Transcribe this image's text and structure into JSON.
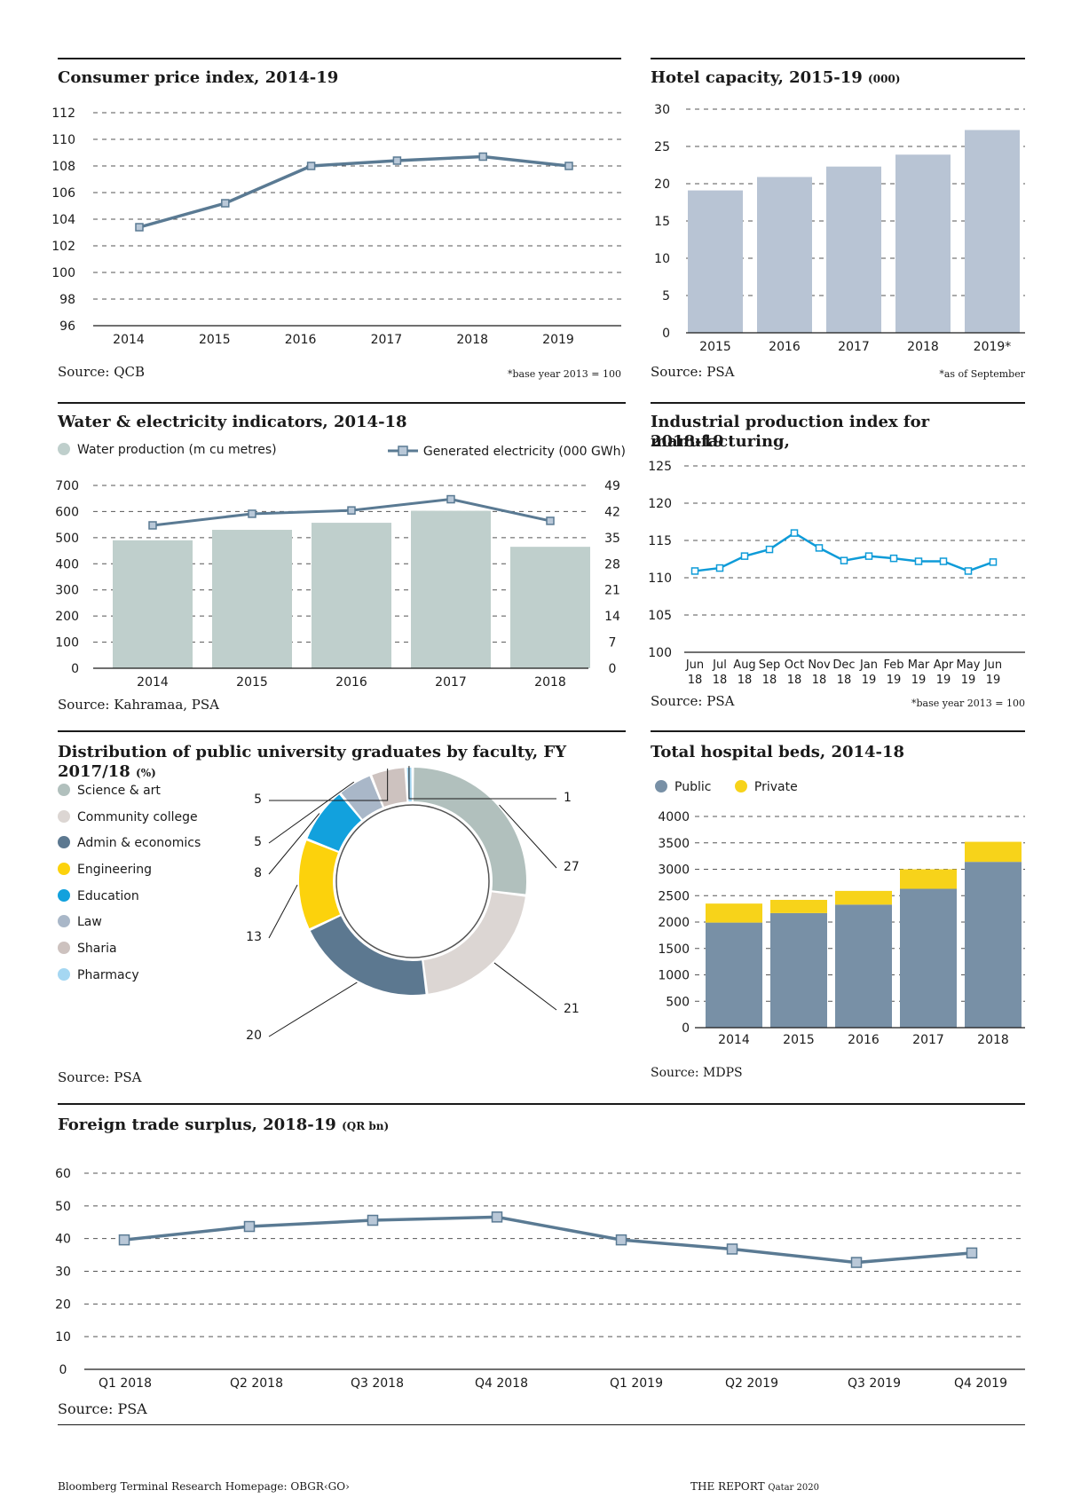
{
  "colors": {
    "line": "#5a7a93",
    "marker_fill": "#b9c8d8",
    "hotel_bar": "#b8c4d4",
    "water_bar": "#bfcfcc",
    "ipi_line": "#0e9bd8",
    "public": "#7890a6",
    "private": "#f7d31a",
    "grid": "#555555"
  },
  "cpi": {
    "title": "Consumer price index, 2014-19",
    "source": "Source: QCB",
    "note": "*base year 2013 = 100",
    "chart_data": {
      "type": "line",
      "x": [
        "2014",
        "2015",
        "2016",
        "2017",
        "2018",
        "2019"
      ],
      "values": [
        103.4,
        105.2,
        108.0,
        108.4,
        108.7,
        108.0
      ],
      "ylim": [
        96,
        112
      ],
      "yticks": [
        96,
        98,
        100,
        102,
        104,
        106,
        108,
        110,
        112
      ]
    }
  },
  "hotel": {
    "title": "Hotel capacity, 2015-19",
    "unit": "(000)",
    "source": "Source: PSA",
    "note": "*as of September",
    "chart_data": {
      "type": "bar",
      "categories": [
        "2015",
        "2016",
        "2017",
        "2018",
        "2019*"
      ],
      "values": [
        19.1,
        20.9,
        22.3,
        23.9,
        27.2
      ],
      "ylim": [
        0,
        30
      ],
      "yticks": [
        0,
        5,
        10,
        15,
        20,
        25,
        30
      ]
    }
  },
  "water": {
    "title": "Water & electricity indicators, 2014-18",
    "source": "Source: Kahramaa, PSA",
    "legend_bar": "Water production (m cu metres)",
    "legend_line": "Generated electricity (000 GWh)",
    "chart_data": {
      "type": "bar",
      "categories": [
        "2014",
        "2015",
        "2016",
        "2017",
        "2018"
      ],
      "series": [
        {
          "name": "Water production (m cu metres)",
          "values": [
            490,
            530,
            557,
            603,
            465
          ]
        },
        {
          "name": "Generated electricity (000 GWh)",
          "values": [
            38.3,
            41.4,
            42.3,
            45.3,
            39.5
          ]
        }
      ],
      "ylim": [
        0,
        700
      ],
      "yticks": [
        0,
        100,
        200,
        300,
        400,
        500,
        600,
        700
      ],
      "y2lim": [
        0,
        49
      ],
      "y2ticks": [
        0,
        7,
        14,
        21,
        28,
        35,
        42,
        49
      ]
    }
  },
  "ipi": {
    "title_line1": "Industrial production index for manufacturing,",
    "title_line2": "2018-19",
    "source": "Source: PSA",
    "note": "*base year 2013 = 100",
    "chart_data": {
      "type": "line",
      "x_top": [
        "Jun",
        "Jul",
        "Aug",
        "Sep",
        "Oct",
        "Nov",
        "Dec",
        "Jan",
        "Feb",
        "Mar",
        "Apr",
        "May",
        "Jun"
      ],
      "x_bottom": [
        "18",
        "18",
        "18",
        "18",
        "18",
        "18",
        "18",
        "19",
        "19",
        "19",
        "19",
        "19",
        "19"
      ],
      "values": [
        110.9,
        111.3,
        112.9,
        113.8,
        116.0,
        114.0,
        112.3,
        112.9,
        112.6,
        112.2,
        112.2,
        110.9,
        112.1
      ],
      "ylim": [
        100,
        125
      ],
      "yticks": [
        100,
        105,
        110,
        115,
        120,
        125
      ]
    }
  },
  "grads": {
    "title": "Distribution of public university graduates by faculty, FY 2017/18",
    "unit": "(%)",
    "source": "Source: PSA",
    "chart_data": {
      "type": "pie",
      "labels": [
        "Science & art",
        "Community college",
        "Admin & economics",
        "Engineering",
        "Education",
        "Law",
        "Sharia",
        "Pharmacy"
      ],
      "values": [
        27,
        21,
        20,
        13,
        8,
        5,
        5,
        1
      ],
      "colors": [
        "#b1c0bd",
        "#dcd6d3",
        "#5c7890",
        "#fcd20c",
        "#12a1dd",
        "#a9b7c8",
        "#cdc2bf",
        "#a5d7f2"
      ]
    }
  },
  "beds": {
    "title": "Total hospital beds, 2014-18",
    "source": "Source: MDPS",
    "legend_public": "Public",
    "legend_private": "Private",
    "chart_data": {
      "type": "bar",
      "categories": [
        "2014",
        "2015",
        "2016",
        "2017",
        "2018"
      ],
      "series": [
        {
          "name": "Public",
          "values": [
            1990,
            2170,
            2330,
            2630,
            3140
          ]
        },
        {
          "name": "Private",
          "values": [
            360,
            250,
            260,
            370,
            380
          ]
        }
      ],
      "ylim": [
        0,
        4000
      ],
      "yticks": [
        0,
        500,
        1000,
        1500,
        2000,
        2500,
        3000,
        3500,
        4000
      ]
    }
  },
  "trade": {
    "title": "Foreign trade surplus, 2018-19",
    "unit": "(QR bn)",
    "source": "Source: PSA",
    "chart_data": {
      "type": "line",
      "x": [
        "Q1 2018",
        "Q2 2018",
        "Q3 2018",
        "Q4 2018",
        "Q1 2019",
        "Q2 2019",
        "Q3 2019",
        "Q4 2019"
      ],
      "values": [
        39.6,
        43.7,
        45.6,
        46.6,
        39.6,
        36.8,
        32.7,
        35.6
      ],
      "ylim": [
        0,
        60
      ],
      "yticks": [
        0,
        10,
        20,
        30,
        40,
        50,
        60
      ]
    }
  },
  "footer": {
    "left": "Bloomberg Terminal Research Homepage: OBGR‹GO›",
    "right_main": "THE REPORT",
    "right_tail": "Qatar 2020"
  }
}
